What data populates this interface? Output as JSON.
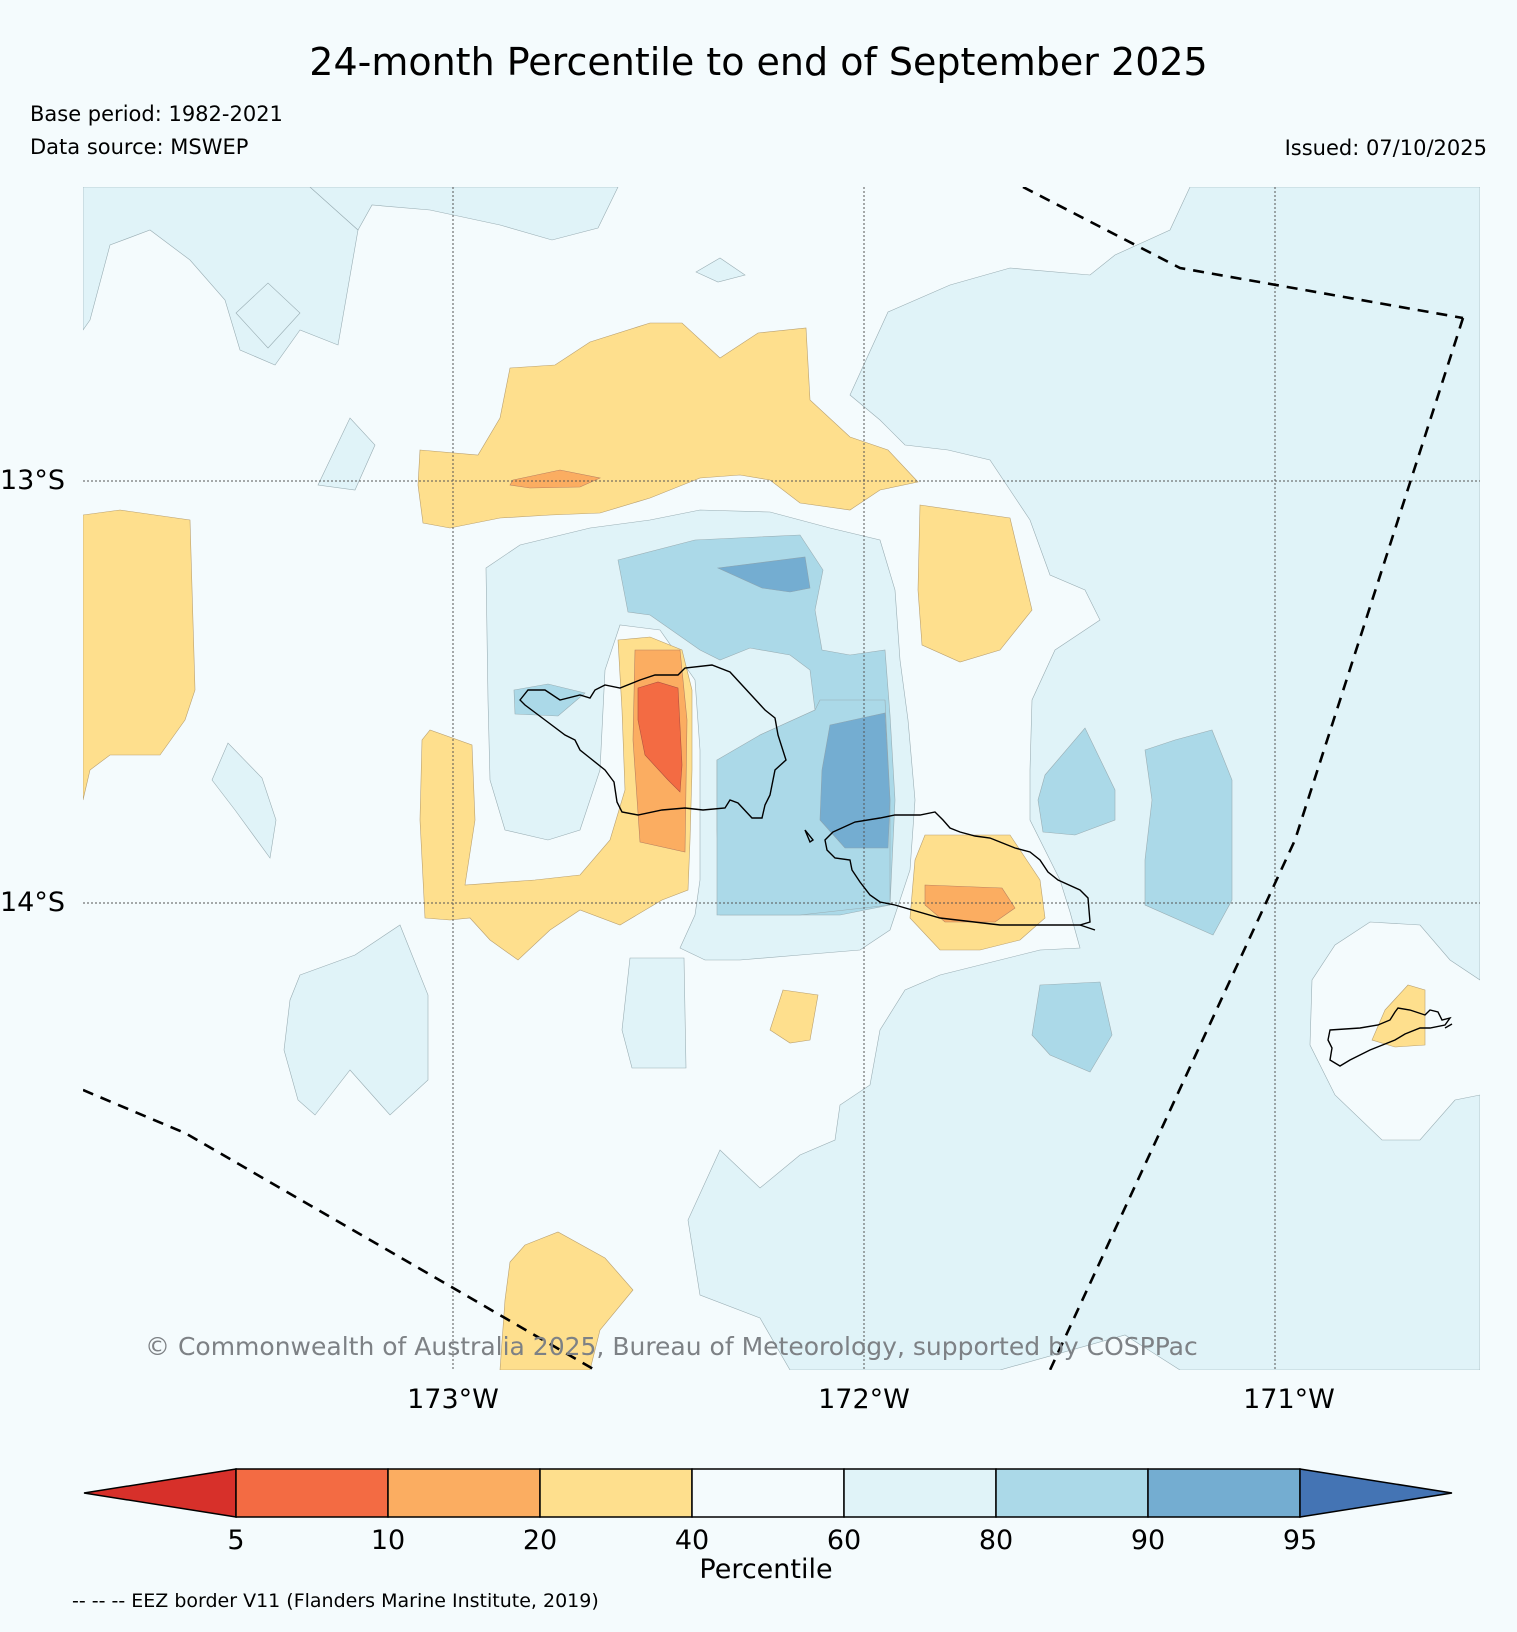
{
  "header": {
    "title": "24-month Percentile to end of September 2025",
    "base_period": "Base period: 1982-2021",
    "data_source": "Data source: MSWEP",
    "issued": "Issued: 07/10/2025"
  },
  "map": {
    "lat_labels": [
      "13°S",
      "14°S"
    ],
    "lon_labels": [
      "173°W",
      "172°W",
      "171°W"
    ],
    "copyright": "© Commonwealth of Australia 2025, Bureau of Meteorology, supported by COSPPac"
  },
  "legend": {
    "title": "Percentile",
    "ticks": [
      "5",
      "10",
      "20",
      "40",
      "60",
      "80",
      "90",
      "95"
    ],
    "colors": [
      "#d7302a",
      "#f36b43",
      "#fbad61",
      "#fedf8d",
      "#f4fbfd",
      "#e0f3f8",
      "#abd9e8",
      "#74add1",
      "#4474b4"
    ],
    "eez_note": "-- -- -- EEZ border V11 (Flanders Marine Institute, 2019)"
  }
}
